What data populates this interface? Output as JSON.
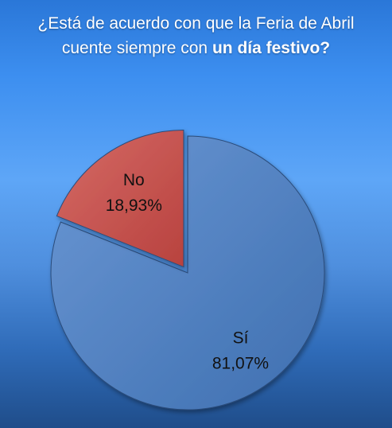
{
  "chart_data": {
    "type": "pie",
    "title_part1": "¿Está de acuerdo con que la Feria de Abril",
    "title_part2": "cuente siempre con ",
    "title_bold": "un día festivo?",
    "categories": [
      "Sí",
      "No"
    ],
    "values": [
      81.07,
      18.93
    ],
    "value_labels": [
      "81,07%",
      "18,93%"
    ],
    "colors": [
      "#4f81bd",
      "#c0504d"
    ],
    "legend": "none"
  }
}
